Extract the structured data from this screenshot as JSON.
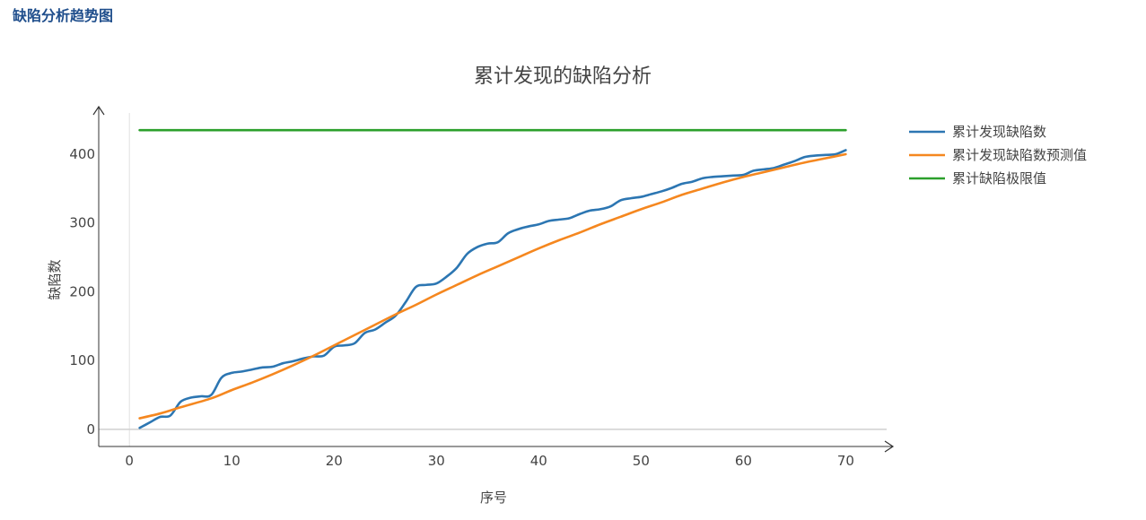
{
  "header": {
    "section_title": "缺陷分析趋势图"
  },
  "chart_data": {
    "type": "line",
    "title": "累计发现的缺陷分析",
    "xlabel": "序号",
    "ylabel": "缺陷数",
    "xlim": [
      -3,
      74
    ],
    "ylim": [
      -25,
      460
    ],
    "x_ticks": [
      0,
      10,
      20,
      30,
      40,
      50,
      60,
      70
    ],
    "y_ticks": [
      0,
      100,
      200,
      300,
      400
    ],
    "grid": false,
    "legend_position": "right",
    "series": [
      {
        "name": "累计发现缺陷数",
        "color": "#2c76b2",
        "x": [
          1,
          2,
          3,
          4,
          5,
          6,
          7,
          8,
          9,
          10,
          11,
          12,
          13,
          14,
          15,
          16,
          17,
          18,
          19,
          20,
          21,
          22,
          23,
          24,
          25,
          26,
          27,
          28,
          29,
          30,
          31,
          32,
          33,
          34,
          35,
          36,
          37,
          38,
          39,
          40,
          41,
          42,
          43,
          44,
          45,
          46,
          47,
          48,
          49,
          50,
          51,
          52,
          53,
          54,
          55,
          56,
          57,
          58,
          59,
          60,
          61,
          62,
          63,
          64,
          65,
          66,
          67,
          68,
          69,
          70
        ],
        "y": [
          2,
          10,
          18,
          20,
          40,
          46,
          48,
          50,
          75,
          82,
          84,
          87,
          90,
          91,
          96,
          99,
          103,
          106,
          107,
          120,
          122,
          125,
          140,
          145,
          155,
          165,
          185,
          207,
          210,
          212,
          222,
          235,
          255,
          265,
          270,
          272,
          285,
          291,
          295,
          298,
          303,
          305,
          307,
          313,
          318,
          320,
          324,
          333,
          336,
          338,
          342,
          346,
          351,
          357,
          360,
          365,
          367,
          368,
          369,
          370,
          376,
          378,
          380,
          385,
          390,
          396,
          398,
          399,
          400,
          406
        ]
      },
      {
        "name": "累计发现缺陷数预测值",
        "color": "#f5871f",
        "x": [
          1,
          3,
          5,
          8,
          10,
          12,
          14,
          16,
          18,
          20,
          22,
          24,
          26,
          28,
          30,
          32,
          34,
          36,
          38,
          40,
          42,
          44,
          46,
          48,
          50,
          52,
          54,
          56,
          58,
          60,
          62,
          64,
          66,
          68,
          70
        ],
        "y": [
          16,
          23,
          32,
          45,
          57,
          68,
          80,
          93,
          107,
          122,
          137,
          152,
          167,
          181,
          196,
          210,
          224,
          237,
          250,
          263,
          275,
          286,
          298,
          309,
          320,
          330,
          341,
          350,
          359,
          367,
          374,
          381,
          388,
          394,
          400
        ]
      },
      {
        "name": "累计缺陷极限值",
        "color": "#2ca02c",
        "x": [
          1,
          70
        ],
        "y": [
          435,
          435
        ]
      }
    ]
  }
}
